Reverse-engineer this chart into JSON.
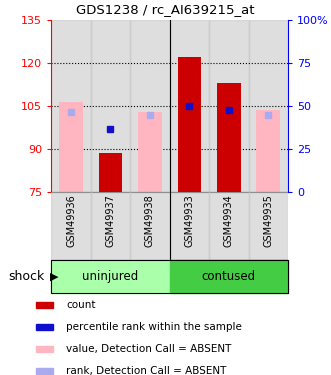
{
  "title": "GDS1238 / rc_AI639215_at",
  "samples": [
    "GSM49936",
    "GSM49937",
    "GSM49938",
    "GSM49933",
    "GSM49934",
    "GSM49935"
  ],
  "red_bar_values": [
    null,
    88.5,
    null,
    122.0,
    113.0,
    null
  ],
  "pink_bar_values": [
    106.5,
    null,
    103.0,
    null,
    null,
    103.5
  ],
  "blue_marker_values": [
    103.0,
    97.0,
    102.0,
    105.0,
    103.5,
    102.0
  ],
  "blue_marker_is_absent": [
    true,
    false,
    true,
    false,
    false,
    true
  ],
  "ylim_left": [
    75,
    135
  ],
  "ylim_right": [
    0,
    100
  ],
  "yticks_left": [
    75,
    90,
    105,
    120,
    135
  ],
  "ytick_labels_left": [
    "75",
    "90",
    "105",
    "120",
    "135"
  ],
  "yticks_right": [
    0,
    25,
    50,
    75,
    100
  ],
  "ytick_labels_right": [
    "0",
    "25",
    "50",
    "75",
    "100%"
  ],
  "bar_bottom": 75,
  "red_color": "#CC0000",
  "pink_color": "#FFB6C1",
  "blue_color": "#1010CC",
  "blue_absent_color": "#AAAAEE",
  "bar_width": 0.6,
  "sample_bg": "#C8C8C8",
  "uninjured_color": "#AAFFAA",
  "contused_color": "#44CC44",
  "legend_items": [
    [
      "#CC0000",
      "count"
    ],
    [
      "#1010CC",
      "percentile rank within the sample"
    ],
    [
      "#FFB6C1",
      "value, Detection Call = ABSENT"
    ],
    [
      "#AAAAEE",
      "rank, Detection Call = ABSENT"
    ]
  ]
}
